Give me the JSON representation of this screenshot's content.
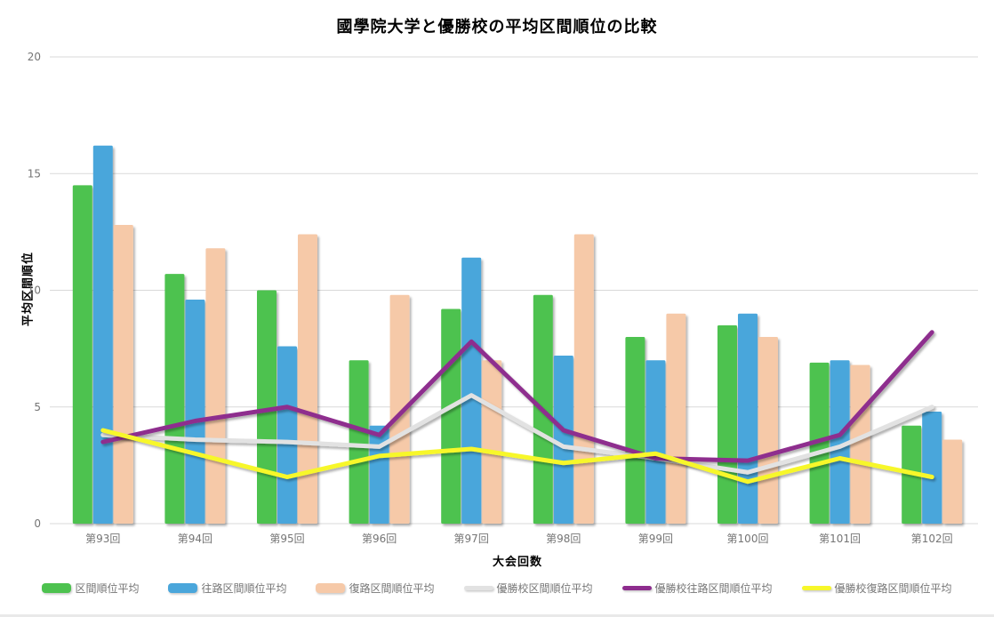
{
  "page": {
    "background": "#ffffff"
  },
  "chart_data": {
    "type": "combo_bar_line",
    "title": "國學院大学と優勝校の平均区間順位の比較",
    "xlabel": "大会回数",
    "ylabel": "平均区間順位",
    "ylim": [
      0,
      20
    ],
    "yticks": [
      0,
      5,
      10,
      15,
      20
    ],
    "grid": "horizontal",
    "grid_color": "#d9d9d9",
    "tick_text_color": "#757575",
    "legend_position": "bottom",
    "categories": [
      "第93回",
      "第94回",
      "第95回",
      "第96回",
      "第97回",
      "第98回",
      "第99回",
      "第100回",
      "第101回",
      "第102回"
    ],
    "series": [
      {
        "name": "区間順位平均",
        "kind": "bar",
        "color": "#4dc24f",
        "values": [
          14.5,
          10.7,
          10.0,
          7.0,
          9.2,
          9.8,
          8.0,
          8.5,
          6.9,
          4.2
        ]
      },
      {
        "name": "往路区間順位平均",
        "kind": "bar",
        "color": "#4aa6db",
        "values": [
          16.2,
          9.6,
          7.6,
          4.2,
          11.4,
          7.2,
          7.0,
          9.0,
          7.0,
          4.8
        ]
      },
      {
        "name": "復路区間順位平均",
        "kind": "bar",
        "color": "#f6c9a8",
        "values": [
          12.8,
          11.8,
          12.4,
          9.8,
          7.0,
          12.4,
          9.0,
          8.0,
          6.8,
          3.6
        ]
      },
      {
        "name": "優勝校区間順位平均",
        "kind": "line",
        "color": "#e2e2e2",
        "values": [
          3.8,
          3.6,
          3.5,
          3.3,
          5.5,
          3.3,
          2.8,
          2.2,
          3.3,
          5.0
        ]
      },
      {
        "name": "優勝校往路区間順位平均",
        "kind": "line",
        "color": "#8e2d8e",
        "values": [
          3.5,
          4.4,
          5.0,
          3.8,
          7.8,
          4.0,
          2.8,
          2.7,
          3.8,
          8.2
        ]
      },
      {
        "name": "優勝校復路区間順位平均",
        "kind": "line",
        "color": "#f7f72a",
        "values": [
          4.0,
          3.0,
          2.0,
          2.9,
          3.2,
          2.6,
          3.0,
          1.8,
          2.8,
          2.0
        ]
      }
    ]
  }
}
